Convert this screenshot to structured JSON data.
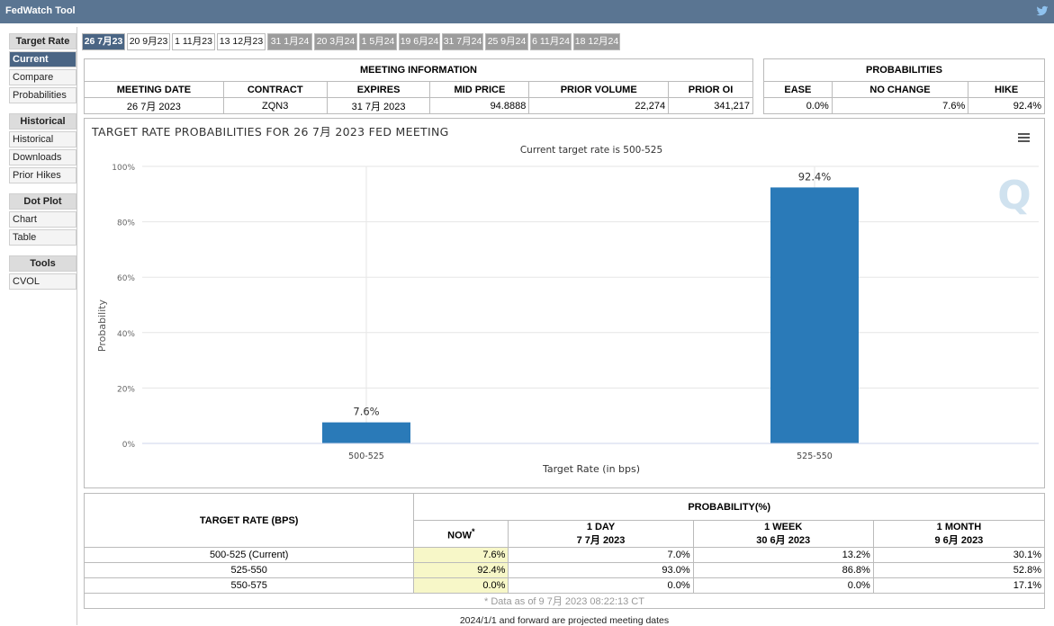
{
  "app": {
    "title": "FedWatch Tool",
    "twitter_icon": "twitter-icon",
    "brand_color": "#5a7592",
    "accent": "#4a6584"
  },
  "sidebar": {
    "groups": [
      {
        "header": "Target Rate",
        "items": [
          "Current",
          "Compare",
          "Probabilities"
        ]
      },
      {
        "header": "Historical",
        "items": [
          "Historical",
          "Downloads",
          "Prior Hikes"
        ]
      },
      {
        "header": "Dot Plot",
        "items": [
          "Chart",
          "Table"
        ]
      },
      {
        "header": "Tools",
        "items": [
          "CVOL"
        ]
      }
    ],
    "active": "Current"
  },
  "tabs": [
    "26 7月23",
    "20 9月23",
    "1 11月23",
    "13 12月23",
    "31 1月24",
    "20 3月24",
    "1 5月24",
    "19 6月24",
    "31 7月24",
    "25 9月24",
    "6 11月24",
    "18 12月24"
  ],
  "meeting_info": {
    "caption": "MEETING INFORMATION",
    "headers": [
      "MEETING DATE",
      "CONTRACT",
      "EXPIRES",
      "MID PRICE",
      "PRIOR VOLUME",
      "PRIOR OI"
    ],
    "row": [
      "26 7月 2023",
      "ZQN3",
      "31 7月 2023",
      "94.8888",
      "22,274",
      "341,217"
    ]
  },
  "probabilities": {
    "caption": "PROBABILITIES",
    "headers": [
      "EASE",
      "NO CHANGE",
      "HIKE"
    ],
    "row": [
      "0.0%",
      "7.6%",
      "92.4%"
    ]
  },
  "chart": {
    "menu_icon": "hamburger-menu-icon",
    "watermark_icon": "q-logo-icon",
    "bar_color": "#2a7ab8"
  },
  "chart_data": {
    "type": "bar",
    "title": "TARGET RATE PROBABILITIES FOR 26 7月 2023 FED MEETING",
    "subtitle": "Current target rate is 500-525",
    "categories": [
      "500-525",
      "525-550"
    ],
    "values": [
      7.6,
      92.4
    ],
    "data_labels": [
      "7.6%",
      "92.4%"
    ],
    "xlabel": "Target Rate (in bps)",
    "ylabel": "Probability",
    "yticks": [
      "0%",
      "20%",
      "40%",
      "60%",
      "80%",
      "100%"
    ],
    "ylim": [
      0,
      100
    ],
    "grid": true
  },
  "prob_table": {
    "col1_header": "TARGET RATE (BPS)",
    "group_header": "PROBABILITY(%)",
    "now_label": "NOW",
    "now_mark": "*",
    "day": {
      "label": "1 DAY",
      "date": "7 7月 2023"
    },
    "week": {
      "label": "1 WEEK",
      "date": "30 6月 2023"
    },
    "month": {
      "label": "1 MONTH",
      "date": "9 6月 2023"
    },
    "rows": [
      {
        "rate": "500-525 (Current)",
        "now": "7.6%",
        "day": "7.0%",
        "week": "13.2%",
        "month": "30.1%"
      },
      {
        "rate": "525-550",
        "now": "92.4%",
        "day": "93.0%",
        "week": "86.8%",
        "month": "52.8%"
      },
      {
        "rate": "550-575",
        "now": "0.0%",
        "day": "0.0%",
        "week": "0.0%",
        "month": "17.1%"
      }
    ],
    "footnote": "* Data as of 9 7月 2023 08:22:13 CT"
  },
  "projection_note": "2024/1/1 and forward are projected meeting dates"
}
